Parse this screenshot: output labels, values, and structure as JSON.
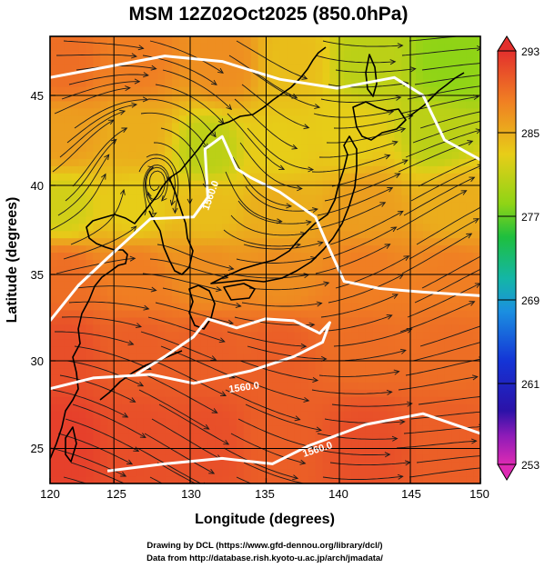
{
  "title": "MSM 12Z02Oct2025 (850.0hPa)",
  "x_axis": {
    "label": "Longitude (degrees)",
    "ticks": [
      "120",
      "125",
      "130",
      "135",
      "140",
      "145",
      "150"
    ]
  },
  "y_axis": {
    "label": "Latitude  (degrees)",
    "ticks": [
      "25",
      "30",
      "35",
      "40",
      "45"
    ]
  },
  "colorbar": {
    "ticks": [
      "293",
      "285",
      "277",
      "269",
      "261",
      "253"
    ],
    "range": [
      253,
      293
    ]
  },
  "contour_labels": [
    "1560.0",
    "1560.0",
    "1560.0"
  ],
  "credits": {
    "line1": "Drawing by DCL (https://www.gfd-dennou.org/library/dcl/)",
    "line2": "Data from http://database.rish.kyoto-u.ac.jp/arch/jmadata/"
  },
  "chart_data": {
    "type": "heatmap",
    "title": "MSM 12Z02Oct2025 (850.0hPa)",
    "xlabel": "Longitude (degrees)",
    "ylabel": "Latitude  (degrees)",
    "xlim": [
      120,
      150
    ],
    "ylim": [
      22.5,
      47.5
    ],
    "colorbar_range": [
      253,
      293
    ],
    "colorbar_ticks": [
      293,
      285,
      277,
      269,
      261,
      253
    ],
    "temperature_field_K": [
      {
        "lon": 121,
        "lat": 46,
        "value": 289
      },
      {
        "lon": 126,
        "lat": 46,
        "value": 288
      },
      {
        "lon": 132,
        "lat": 46,
        "value": 287
      },
      {
        "lon": 137,
        "lat": 46,
        "value": 284
      },
      {
        "lon": 142,
        "lat": 46,
        "value": 281
      },
      {
        "lon": 148,
        "lat": 46,
        "value": 279
      },
      {
        "lon": 121,
        "lat": 42,
        "value": 286
      },
      {
        "lon": 126,
        "lat": 42,
        "value": 285
      },
      {
        "lon": 131,
        "lat": 41,
        "value": 281
      },
      {
        "lon": 136,
        "lat": 41,
        "value": 283
      },
      {
        "lon": 141,
        "lat": 42,
        "value": 283
      },
      {
        "lon": 147,
        "lat": 42,
        "value": 281
      },
      {
        "lon": 121,
        "lat": 38,
        "value": 282
      },
      {
        "lon": 126,
        "lat": 38,
        "value": 283
      },
      {
        "lon": 131,
        "lat": 38,
        "value": 284
      },
      {
        "lon": 136,
        "lat": 38,
        "value": 285
      },
      {
        "lon": 142,
        "lat": 38,
        "value": 286
      },
      {
        "lon": 148,
        "lat": 38,
        "value": 285
      },
      {
        "lon": 121,
        "lat": 34,
        "value": 289
      },
      {
        "lon": 126,
        "lat": 34,
        "value": 288
      },
      {
        "lon": 131,
        "lat": 34,
        "value": 287
      },
      {
        "lon": 136,
        "lat": 34,
        "value": 287
      },
      {
        "lon": 142,
        "lat": 34,
        "value": 288
      },
      {
        "lon": 148,
        "lat": 34,
        "value": 288
      },
      {
        "lon": 121,
        "lat": 30,
        "value": 291
      },
      {
        "lon": 126,
        "lat": 30,
        "value": 290
      },
      {
        "lon": 131,
        "lat": 30,
        "value": 290
      },
      {
        "lon": 136,
        "lat": 30,
        "value": 290
      },
      {
        "lon": 142,
        "lat": 30,
        "value": 289
      },
      {
        "lon": 148,
        "lat": 30,
        "value": 289
      },
      {
        "lon": 121,
        "lat": 25,
        "value": 292
      },
      {
        "lon": 126,
        "lat": 25,
        "value": 291
      },
      {
        "lon": 131,
        "lat": 25,
        "value": 291
      },
      {
        "lon": 136,
        "lat": 25,
        "value": 290
      },
      {
        "lon": 142,
        "lat": 25,
        "value": 291
      },
      {
        "lon": 148,
        "lat": 25,
        "value": 290
      }
    ],
    "height_contours_gpm": [
      {
        "value": 1560.0,
        "path": [
          [
            120,
            45.2
          ],
          [
            124,
            45.8
          ],
          [
            128,
            46.4
          ],
          [
            132,
            46.1
          ],
          [
            136,
            45.1
          ],
          [
            140,
            44.6
          ],
          [
            144,
            45.2
          ],
          [
            146,
            44.2
          ],
          [
            147.5,
            41.7
          ],
          [
            150,
            40.6
          ]
        ]
      },
      {
        "value": 1560.0,
        "path": [
          [
            120,
            31.6
          ],
          [
            122,
            33.6
          ],
          [
            124,
            35.1
          ],
          [
            127,
            37.3
          ],
          [
            130,
            37.4
          ],
          [
            131,
            38.5
          ],
          [
            130.8,
            41.2
          ],
          [
            132,
            41.9
          ],
          [
            133,
            40.1
          ],
          [
            134,
            39.6
          ],
          [
            136,
            38.8
          ],
          [
            138.5,
            37.4
          ],
          [
            139.2,
            36.1
          ],
          [
            140.5,
            33.8
          ],
          [
            143,
            33.4
          ],
          [
            146,
            33.2
          ],
          [
            150,
            33.0
          ]
        ]
      },
      {
        "value": 1560.0,
        "path": [
          [
            120,
            27.8
          ],
          [
            123,
            28.4
          ],
          [
            127,
            28.6
          ],
          [
            130,
            28.1
          ],
          [
            134,
            28.8
          ],
          [
            137,
            29.6
          ],
          [
            139,
            30.4
          ],
          [
            139.5,
            31.5
          ],
          [
            138.8,
            30.9
          ],
          [
            137,
            31.6
          ],
          [
            135,
            31.7
          ],
          [
            133,
            31.2
          ],
          [
            131,
            31.7
          ],
          [
            130,
            30.7
          ],
          [
            128,
            29.6
          ],
          [
            126,
            28.6
          ]
        ]
      },
      {
        "value": 1560.0,
        "path": [
          [
            124,
            23.2
          ],
          [
            128,
            23.6
          ],
          [
            132,
            23.9
          ],
          [
            135.5,
            23.6
          ],
          [
            138,
            24.6
          ],
          [
            142,
            25.8
          ],
          [
            146,
            26.4
          ],
          [
            150,
            25.3
          ]
        ]
      }
    ],
    "contour_label_positions": [
      {
        "text": "1560.0",
        "lon": 131.2,
        "lat": 38.6,
        "rotate": -70
      },
      {
        "text": "1560.0",
        "lon": 133.8,
        "lat": 29.1,
        "rotate": -8
      },
      {
        "text": "1560.0",
        "lon": 138.2,
        "lat": 24.5,
        "rotate": -18
      }
    ],
    "wind": "streamlines, predominantly westerly (eastward)"
  }
}
